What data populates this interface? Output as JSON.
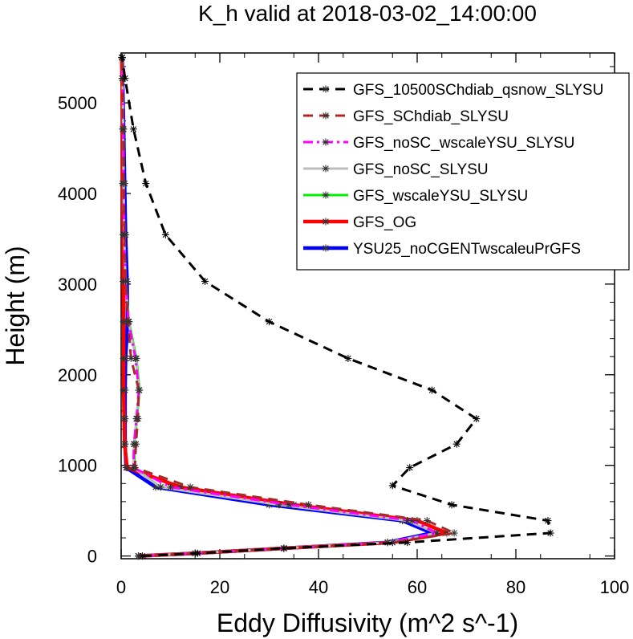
{
  "chart_data": {
    "type": "line",
    "title": "K_h valid at 2018-03-02_14:00:00",
    "xlabel": "Eddy Diffusivity (m^2 s^-1)",
    "ylabel": "Height (m)",
    "xlim": [
      0,
      100
    ],
    "ylim": [
      -30,
      5550
    ],
    "xticks": [
      0,
      20,
      40,
      60,
      80,
      100
    ],
    "xtick_labels": [
      "0",
      "20",
      "40",
      "60",
      "80",
      "100"
    ],
    "yticks": [
      0,
      1000,
      2000,
      3000,
      4000,
      5000
    ],
    "ytick_labels": [
      "0",
      "1000",
      "2000",
      "3000",
      "4000",
      "5000"
    ],
    "legend_position": "top-right",
    "grid": false,
    "series": [
      {
        "name": "GFS_10500SChdiab_qsnow_SLYSU",
        "color": "#000000",
        "dash": "dash",
        "width": 3,
        "points": [
          [
            4.3,
            0
          ],
          [
            15.5,
            30
          ],
          [
            33,
            85
          ],
          [
            58,
            150
          ],
          [
            87,
            253
          ],
          [
            86.5,
            390
          ],
          [
            67,
            565
          ],
          [
            55,
            777
          ],
          [
            58.5,
            975
          ],
          [
            68,
            1235
          ],
          [
            72,
            1515
          ],
          [
            63,
            1830
          ],
          [
            46,
            2180
          ],
          [
            30,
            2585
          ],
          [
            17,
            3030
          ],
          [
            9,
            3545
          ],
          [
            5,
            4110
          ],
          [
            2.5,
            4710
          ],
          [
            0.8,
            5270
          ],
          [
            0.2,
            5500
          ]
        ]
      },
      {
        "name": "GFS_SChdiab_SLYSU",
        "color": "#a52a2a",
        "dash": "dash",
        "width": 3,
        "points": [
          [
            3.5,
            0
          ],
          [
            15,
            30
          ],
          [
            33,
            85
          ],
          [
            55,
            150
          ],
          [
            67.5,
            253
          ],
          [
            62,
            390
          ],
          [
            38,
            565
          ],
          [
            14,
            760
          ],
          [
            2.8,
            975
          ],
          [
            3,
            1235
          ],
          [
            3.4,
            1515
          ],
          [
            3.6,
            1830
          ],
          [
            2,
            2180
          ],
          [
            1.4,
            2585
          ],
          [
            0.9,
            3030
          ],
          [
            0.7,
            3545
          ],
          [
            0.5,
            4110
          ],
          [
            0.4,
            4710
          ],
          [
            0.3,
            5270
          ],
          [
            0.2,
            5500
          ]
        ]
      },
      {
        "name": "GFS_noSC_wscaleYSU_SLYSU",
        "color": "#ff00ff",
        "dash": "dashdot",
        "width": 3,
        "points": [
          [
            3.5,
            0
          ],
          [
            15,
            30
          ],
          [
            33,
            85
          ],
          [
            54,
            150
          ],
          [
            64,
            253
          ],
          [
            59,
            390
          ],
          [
            34,
            565
          ],
          [
            10,
            760
          ],
          [
            2.5,
            975
          ],
          [
            2.6,
            1235
          ],
          [
            3.1,
            1515
          ],
          [
            3.6,
            1830
          ],
          [
            2.9,
            2180
          ],
          [
            1.5,
            2585
          ],
          [
            0.9,
            3030
          ],
          [
            0.6,
            3545
          ],
          [
            0.5,
            4110
          ],
          [
            0.4,
            4710
          ],
          [
            0.3,
            5270
          ],
          [
            0.2,
            5500
          ]
        ]
      },
      {
        "name": "GFS_noSC_SLYSU",
        "color": "#bdbdbd",
        "dash": "solid",
        "width": 3,
        "points": [
          [
            3.5,
            0
          ],
          [
            15,
            30
          ],
          [
            33,
            85
          ],
          [
            54,
            150
          ],
          [
            64,
            253
          ],
          [
            58,
            390
          ],
          [
            32,
            565
          ],
          [
            8,
            760
          ],
          [
            2.5,
            975
          ],
          [
            2.6,
            1235
          ],
          [
            3.1,
            1515
          ],
          [
            3.6,
            1830
          ],
          [
            3,
            2180
          ],
          [
            1.5,
            2585
          ],
          [
            0.9,
            3030
          ],
          [
            0.6,
            3545
          ],
          [
            0.5,
            4110
          ],
          [
            0.4,
            4710
          ],
          [
            0.3,
            5270
          ],
          [
            0.2,
            5500
          ]
        ]
      },
      {
        "name": "GFS_wscaleYSU_SLYSU",
        "color": "#00ee00",
        "dash": "solid",
        "width": 3,
        "points": [
          [
            3.5,
            0
          ],
          [
            15,
            30
          ],
          [
            33,
            85
          ],
          [
            54,
            150
          ],
          [
            64,
            253
          ],
          [
            58,
            390
          ],
          [
            32,
            565
          ],
          [
            8,
            760
          ],
          [
            2.7,
            975
          ],
          [
            2.7,
            1235
          ],
          [
            3.2,
            1515
          ],
          [
            3.7,
            1830
          ],
          [
            3.1,
            2180
          ],
          [
            1.6,
            2585
          ],
          [
            0.9,
            3030
          ],
          [
            0.6,
            3545
          ],
          [
            0.5,
            4110
          ],
          [
            0.4,
            4710
          ],
          [
            0.3,
            5270
          ],
          [
            0.2,
            5500
          ]
        ]
      },
      {
        "name": "GFS_OG",
        "color": "#ff0000",
        "dash": "solid",
        "width": 4.5,
        "points": [
          [
            3.5,
            0
          ],
          [
            15,
            30
          ],
          [
            33,
            85
          ],
          [
            55,
            150
          ],
          [
            66,
            253
          ],
          [
            60,
            390
          ],
          [
            35,
            565
          ],
          [
            12,
            760
          ],
          [
            1.2,
            975
          ],
          [
            0.7,
            1235
          ],
          [
            0.6,
            1515
          ],
          [
            0.5,
            1830
          ],
          [
            0.5,
            2180
          ],
          [
            0.5,
            2585
          ],
          [
            0.4,
            3030
          ],
          [
            0.4,
            3545
          ],
          [
            0.3,
            4110
          ],
          [
            0.3,
            4710
          ],
          [
            0.2,
            5270
          ],
          [
            0.1,
            5500
          ]
        ]
      },
      {
        "name": "YSU25_noCGENTwscaleuPrGFS",
        "color": "#0000ff",
        "dash": "solid",
        "width": 4.5,
        "points": [
          [
            3.5,
            0
          ],
          [
            15,
            30
          ],
          [
            33,
            85
          ],
          [
            54,
            150
          ],
          [
            63,
            253
          ],
          [
            57,
            390
          ],
          [
            30,
            565
          ],
          [
            7,
            760
          ],
          [
            1,
            975
          ],
          [
            0.8,
            1235
          ],
          [
            0.8,
            1515
          ],
          [
            0.8,
            1830
          ],
          [
            0.9,
            2180
          ],
          [
            1.3,
            2585
          ],
          [
            1.2,
            3030
          ],
          [
            0.9,
            3545
          ],
          [
            0.7,
            4110
          ],
          [
            0.5,
            4710
          ],
          [
            0.3,
            5270
          ],
          [
            0.2,
            5500
          ]
        ]
      }
    ]
  }
}
